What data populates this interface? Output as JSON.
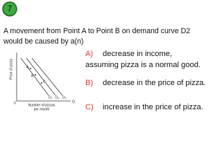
{
  "badge": "7",
  "question": [
    "A movement from Point A to Point B on demand curve D2",
    "would be caused by a(n)"
  ],
  "diagram": {
    "y_axis_label": "Price of pizza",
    "x_axis_label": [
      "Number of pizzas",
      "per month"
    ],
    "origin": "0",
    "x_end": "Q",
    "points": [
      "A",
      "B",
      "C"
    ],
    "curves": [
      "D₁",
      "D₂",
      "D₃"
    ]
  },
  "options": [
    {
      "letter": "A)",
      "lines": [
        "decrease in income,",
        "assuming pizza is a normal good."
      ]
    },
    {
      "letter": "B)",
      "lines": [
        "decrease in the price of pizza."
      ]
    },
    {
      "letter": "C)",
      "lines": [
        "increase in the price of pizza."
      ]
    }
  ]
}
